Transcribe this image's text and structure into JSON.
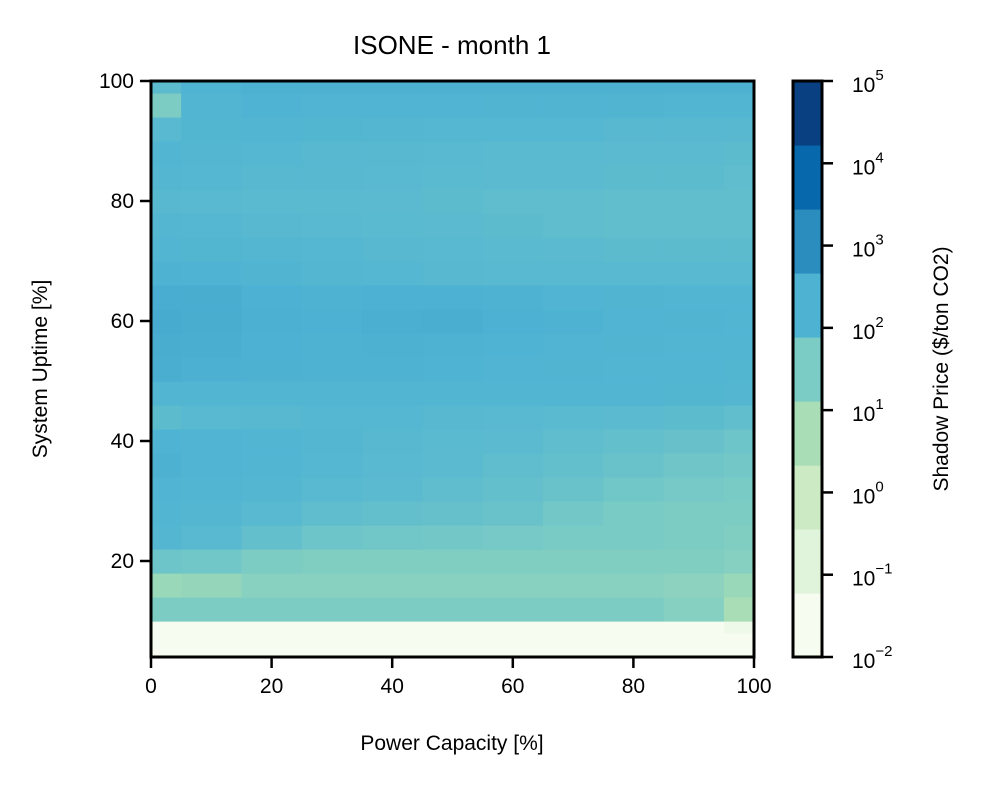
{
  "chart_data": {
    "type": "heatmap",
    "title": "ISONE - month 1",
    "xlabel": "Power Capacity [%]",
    "ylabel": "System Uptime [%]",
    "xlim": [
      0,
      100
    ],
    "ylim": [
      4,
      100
    ],
    "x_ticks": [
      "0",
      "20",
      "40",
      "60",
      "80",
      "100"
    ],
    "y_ticks": [
      "20",
      "40",
      "60",
      "80",
      "100"
    ],
    "colorbar": {
      "label": "Shadow Price ($/ton CO2)",
      "scale": "log",
      "range": [
        0.01,
        100000
      ],
      "tick_bases": [
        "10",
        "10",
        "10",
        "10",
        "10",
        "10",
        "10",
        "10"
      ],
      "tick_exponents": [
        "−2",
        "−1",
        "0",
        "1",
        "2",
        "3",
        "4",
        "5"
      ],
      "colors": [
        "#f7fcf0",
        "#e0f3db",
        "#ccebc5",
        "#a8ddb5",
        "#7bccc4",
        "#4eb3d3",
        "#2b8cbe",
        "#0868ac",
        "#084081"
      ]
    },
    "x": [
      0,
      10,
      20,
      30,
      40,
      50,
      60,
      70,
      80,
      90,
      100
    ],
    "y": [
      8,
      12,
      16,
      20,
      24,
      28,
      32,
      36,
      40,
      44,
      48,
      52,
      56,
      60,
      64,
      68,
      72,
      76,
      80,
      84,
      88,
      92,
      96,
      100
    ],
    "z": [
      [
        0.01,
        0.01,
        0.01,
        0.01,
        0.01,
        0.01,
        0.01,
        0.01,
        0.01,
        0.01,
        0.02
      ],
      [
        30,
        30,
        30,
        30,
        30,
        30,
        30,
        30,
        30,
        20,
        4
      ],
      [
        8,
        10,
        18,
        18,
        18,
        18,
        18,
        18,
        18,
        15,
        8
      ],
      [
        60,
        50,
        30,
        25,
        25,
        25,
        25,
        25,
        25,
        25,
        20
      ],
      [
        180,
        150,
        90,
        60,
        50,
        45,
        40,
        35,
        35,
        30,
        25
      ],
      [
        200,
        180,
        150,
        110,
        90,
        80,
        70,
        45,
        35,
        30,
        30
      ],
      [
        220,
        200,
        180,
        150,
        130,
        110,
        90,
        70,
        50,
        40,
        35
      ],
      [
        250,
        220,
        200,
        170,
        150,
        130,
        110,
        90,
        70,
        55,
        45
      ],
      [
        230,
        220,
        200,
        180,
        160,
        140,
        130,
        110,
        90,
        75,
        60
      ],
      [
        120,
        150,
        160,
        170,
        170,
        160,
        150,
        140,
        130,
        120,
        100
      ],
      [
        200,
        200,
        200,
        200,
        200,
        200,
        200,
        200,
        200,
        190,
        180
      ],
      [
        300,
        280,
        250,
        240,
        240,
        230,
        220,
        210,
        200,
        200,
        190
      ],
      [
        320,
        300,
        260,
        240,
        250,
        240,
        230,
        220,
        210,
        200,
        200
      ],
      [
        350,
        320,
        280,
        260,
        290,
        300,
        260,
        240,
        220,
        210,
        200
      ],
      [
        330,
        320,
        260,
        240,
        260,
        260,
        240,
        220,
        210,
        200,
        200
      ],
      [
        240,
        230,
        210,
        180,
        170,
        160,
        150,
        150,
        150,
        150,
        150
      ],
      [
        200,
        190,
        180,
        170,
        160,
        150,
        140,
        130,
        120,
        120,
        120
      ],
      [
        180,
        170,
        160,
        150,
        140,
        130,
        120,
        110,
        100,
        100,
        100
      ],
      [
        160,
        150,
        140,
        140,
        130,
        120,
        110,
        110,
        100,
        100,
        100
      ],
      [
        180,
        170,
        160,
        160,
        150,
        140,
        130,
        130,
        120,
        120,
        110
      ],
      [
        200,
        180,
        170,
        160,
        160,
        150,
        140,
        140,
        130,
        130,
        120
      ],
      [
        150,
        190,
        200,
        190,
        180,
        170,
        170,
        170,
        160,
        160,
        160
      ],
      [
        30,
        200,
        230,
        220,
        220,
        220,
        210,
        210,
        210,
        200,
        200
      ],
      [
        120,
        230,
        250,
        250,
        250,
        250,
        250,
        250,
        250,
        250,
        250
      ]
    ]
  }
}
